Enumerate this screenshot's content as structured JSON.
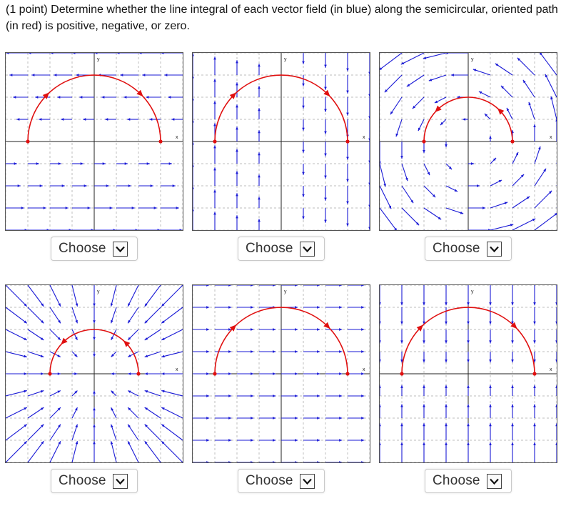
{
  "question": "(1 point) Determine whether the line integral of each vector field (in blue) along the semicircular, oriented path (in red) is positive, negative, or zero.",
  "axis_labels": {
    "x": "x",
    "y": "y"
  },
  "colors": {
    "field": "#1a1ad6",
    "path": "#e01010",
    "grid": "#bdbdbd",
    "axis": "#222222"
  },
  "choose_label": "Choose",
  "plots": [
    {
      "field": "upper-left-lower-right",
      "path_radius": 3,
      "arrow_direction": "right"
    },
    {
      "field": "left-up-right-down",
      "path_radius": 3,
      "arrow_direction": "right"
    },
    {
      "field": "counterclockwise-rotation",
      "path_radius": 2,
      "arrow_direction": "left"
    },
    {
      "field": "radial-inward",
      "path_radius": 2,
      "arrow_direction": "left"
    },
    {
      "field": "constant-right",
      "path_radius": 3,
      "arrow_direction": "right"
    },
    {
      "field": "upper-down-lower-up",
      "path_radius": 3,
      "arrow_direction": "right"
    }
  ]
}
